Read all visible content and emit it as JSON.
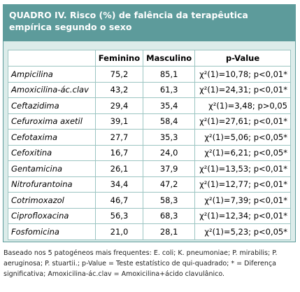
{
  "header": {
    "title": "QUADRO IV. Risco (%) de falência da terapêutica empírica segundo o sexo"
  },
  "table": {
    "columns": [
      "",
      "Feminino",
      "Masculino",
      "p-Value"
    ],
    "rows": [
      [
        "Ampicilina",
        "75,2",
        "85,1",
        "χ²(1)=10,78; p<0,01*"
      ],
      [
        "Amoxicilina-ác.clav",
        "43,2",
        "61,3",
        "χ²(1)=24,31; p<0,01*"
      ],
      [
        "Ceftazidima",
        "29,4",
        "35,4",
        "χ²(1)=3,48; p>0,05"
      ],
      [
        "Cefuroxima axetil",
        "39,1",
        "58,4",
        "χ²(1)=27,61; p<0,01*"
      ],
      [
        "Cefotaxima",
        "27,7",
        "35,3",
        "χ²(1)=5,06; p<0,05*"
      ],
      [
        "Cefoxitina",
        "16,7",
        "24,0",
        "χ²(1)=6,21; p<0,05*"
      ],
      [
        "Gentamicina",
        "26,1",
        "37,9",
        "χ²(1)=13,53; p<0,01*"
      ],
      [
        "Nitrofurantoina",
        "34,4",
        "47,2",
        "χ²(1)=12,77; p<0,01*"
      ],
      [
        "Cotrimoxazol",
        "46,7",
        "58,3",
        "χ²(1)=7,39; p<0,01*"
      ],
      [
        "Ciprofloxacina",
        "56,3",
        "68,3",
        "χ²(1)=12,34; p<0,01*"
      ],
      [
        "Fosfomicina",
        "21,0",
        "28,1",
        "χ²(1)=5,23; p<0,05*"
      ]
    ]
  },
  "footnote": "Baseado nos 5 patogéneos mais frequentes: E. coli; K. pneumoniae; P. mirabilis; P. aeruginosa; P. stuartii.; p-Value = Teste estatístico de qui-quadrado; * = Diferença significativa; Amoxicilina-ác.clav = Amoxicilina+ácido clavulânico."
}
